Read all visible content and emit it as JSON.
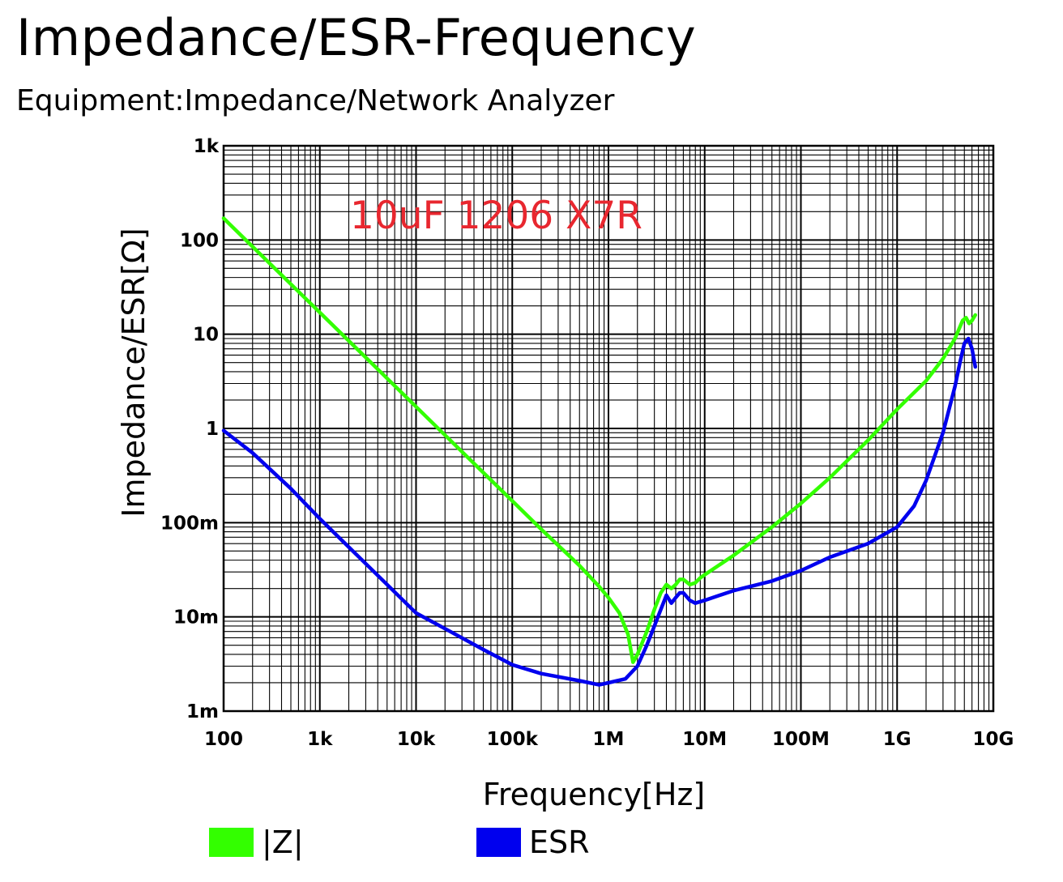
{
  "title": "Impedance/ESR-Frequency",
  "subtitle": "Equipment:Impedance/Network Analyzer",
  "colors": {
    "z": "#33ff00",
    "esr": "#0000ee",
    "annotation": "#e8272f",
    "grid": "#000000"
  },
  "chart_data": {
    "type": "line",
    "title": "Impedance/ESR-Frequency",
    "xlabel": "Frequency[Hz]",
    "ylabel": "Impedance/ESR[Ω]",
    "xscale": "log",
    "yscale": "log",
    "xlim": [
      100,
      10000000000
    ],
    "ylim": [
      0.001,
      1000
    ],
    "grid": true,
    "legend_position": "bottom",
    "x_ticks": [
      {
        "value": 100,
        "label": "100"
      },
      {
        "value": 1000,
        "label": "1k"
      },
      {
        "value": 10000,
        "label": "10k"
      },
      {
        "value": 100000,
        "label": "100k"
      },
      {
        "value": 1000000,
        "label": "1M"
      },
      {
        "value": 10000000,
        "label": "10M"
      },
      {
        "value": 100000000,
        "label": "100M"
      },
      {
        "value": 1000000000,
        "label": "1G"
      },
      {
        "value": 10000000000,
        "label": "10G"
      }
    ],
    "y_ticks": [
      {
        "value": 1000,
        "label": "1k"
      },
      {
        "value": 100,
        "label": "100"
      },
      {
        "value": 10,
        "label": "10"
      },
      {
        "value": 1,
        "label": "1"
      },
      {
        "value": 0.1,
        "label": "100m"
      },
      {
        "value": 0.01,
        "label": "10m"
      },
      {
        "value": 0.001,
        "label": "1m"
      }
    ],
    "annotation": "10uF 1206 X7R",
    "series": [
      {
        "name": "|Z|",
        "color": "#33ff00",
        "x": [
          100,
          200,
          500,
          1000,
          2000,
          5000,
          10000,
          20000,
          50000,
          100000,
          200000,
          500000,
          800000,
          1000000,
          1300000,
          1600000,
          1800000,
          2000000,
          2500000,
          3000000,
          3500000,
          4000000,
          4500000,
          5000000,
          5500000,
          6000000,
          7000000,
          8000000,
          9000000,
          10000000,
          20000000,
          50000000,
          100000000,
          200000000,
          500000000,
          1000000000,
          2000000000,
          3000000000,
          4000000000,
          4800000000,
          5200000000,
          5600000000,
          6000000000,
          6500000000
        ],
        "y": [
          170,
          85,
          34,
          17,
          8.5,
          3.4,
          1.7,
          0.85,
          0.34,
          0.17,
          0.085,
          0.035,
          0.021,
          0.016,
          0.011,
          0.0065,
          0.0033,
          0.004,
          0.007,
          0.012,
          0.018,
          0.022,
          0.02,
          0.022,
          0.025,
          0.025,
          0.022,
          0.023,
          0.026,
          0.028,
          0.045,
          0.09,
          0.16,
          0.3,
          0.75,
          1.6,
          3.2,
          5.5,
          9,
          14,
          15,
          13,
          14,
          16
        ]
      },
      {
        "name": "ESR",
        "color": "#0000ee",
        "x": [
          100,
          200,
          500,
          1000,
          2000,
          5000,
          10000,
          20000,
          50000,
          100000,
          200000,
          500000,
          800000,
          1000000,
          1500000,
          2000000,
          2500000,
          3000000,
          3500000,
          4000000,
          4500000,
          5000000,
          5500000,
          6000000,
          7000000,
          8000000,
          10000000,
          20000000,
          50000000,
          100000000,
          200000000,
          500000000,
          1000000000,
          1500000000,
          2000000000,
          3000000000,
          4000000000,
          4500000000,
          5000000000,
          5500000000,
          6000000000,
          6500000000
        ],
        "y": [
          0.95,
          0.55,
          0.23,
          0.11,
          0.055,
          0.022,
          0.011,
          0.0075,
          0.0045,
          0.0031,
          0.0025,
          0.0021,
          0.0019,
          0.002,
          0.0022,
          0.003,
          0.005,
          0.008,
          0.012,
          0.017,
          0.014,
          0.016,
          0.018,
          0.018,
          0.015,
          0.014,
          0.015,
          0.019,
          0.024,
          0.031,
          0.043,
          0.06,
          0.09,
          0.15,
          0.28,
          0.9,
          2.8,
          5,
          8,
          9,
          7,
          4.5
        ]
      }
    ]
  }
}
